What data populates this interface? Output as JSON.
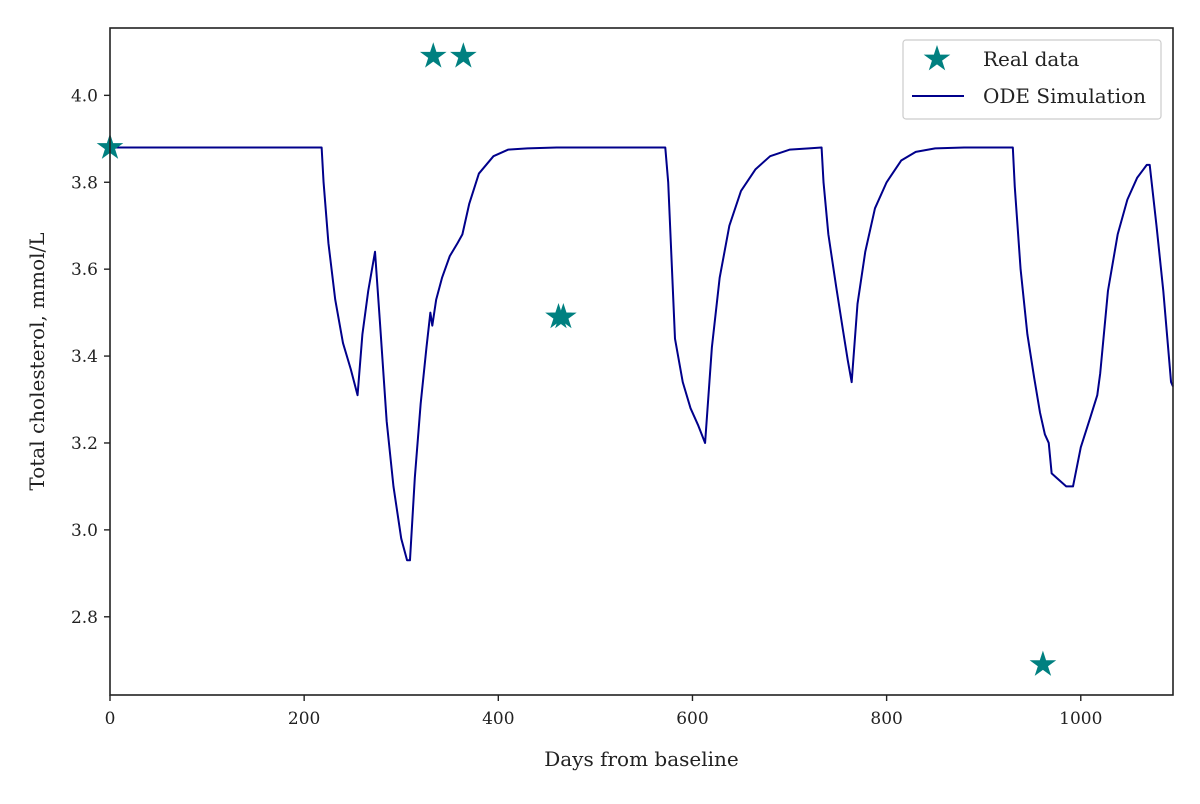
{
  "chart_data": {
    "type": "line",
    "title": "",
    "xlabel": "Days from baseline",
    "ylabel": "Total cholesterol, mmol/L",
    "xlim": [
      0,
      1095
    ],
    "ylim": [
      2.62,
      4.155
    ],
    "xticks": [
      0,
      200,
      400,
      600,
      800,
      1000
    ],
    "yticks": [
      2.8,
      3.0,
      3.2,
      3.4,
      3.6,
      3.8,
      4.0
    ],
    "xtick_labels": [
      "0",
      "200",
      "400",
      "600",
      "800",
      "1000"
    ],
    "ytick_labels": [
      "2.8",
      "3.0",
      "3.2",
      "3.4",
      "3.6",
      "3.8",
      "4.0"
    ],
    "grid": false,
    "legend_position": "top-right",
    "colors": {
      "real_data": "#008080",
      "ode_simulation": "#00008b",
      "axes": "#222222"
    },
    "series": [
      {
        "name": "Real data",
        "kind": "scatter",
        "marker": "star",
        "x": [
          0,
          333,
          364,
          462,
          467,
          961
        ],
        "y": [
          3.88,
          4.09,
          4.09,
          3.49,
          3.49,
          2.69
        ]
      },
      {
        "name": "ODE Simulation",
        "kind": "line",
        "x": [
          0,
          218,
          220,
          225,
          232,
          240,
          248,
          255,
          260,
          266,
          273,
          278,
          285,
          292,
          300,
          306,
          309,
          314,
          320,
          326,
          330,
          332,
          336,
          342,
          350,
          358,
          363,
          370,
          380,
          395,
          410,
          430,
          460,
          500,
          572,
          575,
          582,
          590,
          598,
          606,
          613,
          620,
          628,
          638,
          650,
          665,
          680,
          700,
          720,
          733,
          735,
          740,
          748,
          755,
          760,
          764,
          770,
          778,
          788,
          800,
          815,
          830,
          850,
          880,
          930,
          932,
          938,
          945,
          952,
          958,
          963,
          967,
          970,
          975,
          985,
          992,
          1000,
          1010,
          1017,
          1020,
          1028,
          1038,
          1048,
          1058,
          1068,
          1071,
          1078,
          1085,
          1093,
          1095
        ],
        "y": [
          3.88,
          3.88,
          3.8,
          3.66,
          3.53,
          3.43,
          3.37,
          3.31,
          3.45,
          3.55,
          3.64,
          3.48,
          3.25,
          3.1,
          2.98,
          2.93,
          2.93,
          3.12,
          3.29,
          3.42,
          3.5,
          3.47,
          3.53,
          3.58,
          3.63,
          3.66,
          3.68,
          3.75,
          3.82,
          3.86,
          3.875,
          3.878,
          3.88,
          3.88,
          3.88,
          3.8,
          3.44,
          3.34,
          3.28,
          3.24,
          3.2,
          3.42,
          3.58,
          3.7,
          3.78,
          3.83,
          3.86,
          3.875,
          3.878,
          3.88,
          3.8,
          3.68,
          3.56,
          3.46,
          3.39,
          3.34,
          3.52,
          3.64,
          3.74,
          3.8,
          3.85,
          3.87,
          3.878,
          3.88,
          3.88,
          3.79,
          3.6,
          3.45,
          3.35,
          3.27,
          3.22,
          3.2,
          3.13,
          3.12,
          3.1,
          3.1,
          3.19,
          3.26,
          3.31,
          3.36,
          3.55,
          3.68,
          3.76,
          3.81,
          3.84,
          3.84,
          3.7,
          3.55,
          3.34,
          3.33
        ]
      }
    ]
  }
}
